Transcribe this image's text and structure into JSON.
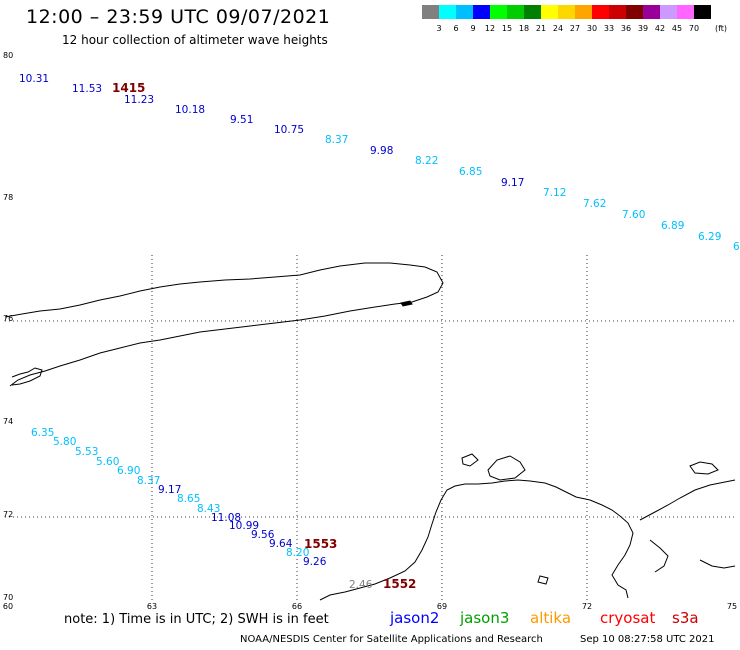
{
  "header": {
    "title": "12:00 – 23:59 UTC 09/07/2021",
    "subtitle": "12 hour collection of altimeter wave heights"
  },
  "colorbar": {
    "unit": "(ft)",
    "colors": [
      "#808080",
      "#00ffff",
      "#00bfff",
      "#0000ff",
      "#00ff00",
      "#00cc00",
      "#008000",
      "#ffff00",
      "#ffd700",
      "#ffa500",
      "#ff0000",
      "#cc0000",
      "#800000",
      "#990099",
      "#cc99ff",
      "#ff66ff",
      "#000000"
    ],
    "labels": [
      "3",
      "6",
      "9",
      "12",
      "15",
      "18",
      "21",
      "24",
      "27",
      "30",
      "33",
      "36",
      "39",
      "42",
      "45",
      "70"
    ]
  },
  "axes": {
    "lat_labels": [
      "80",
      "78",
      "76",
      "74",
      "72",
      "70"
    ],
    "lon_labels": [
      "60",
      "63",
      "66",
      "69",
      "72",
      "75"
    ]
  },
  "tracks": [
    {
      "pass_label": "1415",
      "points": [
        {
          "v": "10.31",
          "c": "#0000cc"
        },
        {
          "v": "11.53",
          "c": "#0000cc"
        },
        {
          "v": "11.23",
          "c": "#0000cc"
        },
        {
          "v": "10.18",
          "c": "#0000cc"
        },
        {
          "v": "9.51",
          "c": "#0000cc"
        },
        {
          "v": "10.75",
          "c": "#0000cc"
        },
        {
          "v": "8.37",
          "c": "#00bfff"
        },
        {
          "v": "9.98",
          "c": "#0000cc"
        },
        {
          "v": "8.22",
          "c": "#00bfff"
        },
        {
          "v": "6.85",
          "c": "#00bfff"
        },
        {
          "v": "9.17",
          "c": "#0000cc"
        },
        {
          "v": "7.12",
          "c": "#00bfff"
        },
        {
          "v": "7.62",
          "c": "#00bfff"
        },
        {
          "v": "7.60",
          "c": "#00bfff"
        },
        {
          "v": "6.89",
          "c": "#00bfff"
        },
        {
          "v": "6.29",
          "c": "#00bfff"
        },
        {
          "v": "6",
          "c": "#00bfff"
        }
      ]
    },
    {
      "pass_label": "1553",
      "points": [
        {
          "v": "6.35",
          "c": "#00bfff"
        },
        {
          "v": "5.80",
          "c": "#00bfff"
        },
        {
          "v": "5.53",
          "c": "#00bfff"
        },
        {
          "v": "5.60",
          "c": "#00bfff"
        },
        {
          "v": "6.90",
          "c": "#00bfff"
        },
        {
          "v": "8.37",
          "c": "#00bfff"
        },
        {
          "v": "9.17",
          "c": "#0000cc"
        },
        {
          "v": "8.65",
          "c": "#00bfff"
        },
        {
          "v": "8.43",
          "c": "#00bfff"
        },
        {
          "v": "11.08",
          "c": "#0000cc"
        },
        {
          "v": "10.99",
          "c": "#0000cc"
        },
        {
          "v": "9.56",
          "c": "#0000cc"
        },
        {
          "v": "9.64",
          "c": "#0000cc"
        },
        {
          "v": "8.20",
          "c": "#00bfff"
        },
        {
          "v": "9.26",
          "c": "#0000cc"
        }
      ]
    },
    {
      "pass_label": "1552",
      "points": [
        {
          "v": "2.46",
          "c": "#808080"
        }
      ]
    }
  ],
  "footer": {
    "note": "note:  1) Time is in UTC;  2) SWH is in feet",
    "satellites": [
      {
        "name": "jason2",
        "color": "#0000ff"
      },
      {
        "name": "jason3",
        "color": "#00a000"
      },
      {
        "name": "altika",
        "color": "#ff9900"
      },
      {
        "name": "cryosat",
        "color": "#ff0000"
      },
      {
        "name": "s3a",
        "color": "#cc0000"
      }
    ],
    "credit": "NOAA/NESDIS Center for Satellite Applications and Research",
    "timestamp": "Sep 10 08:27:58 UTC 2021"
  }
}
